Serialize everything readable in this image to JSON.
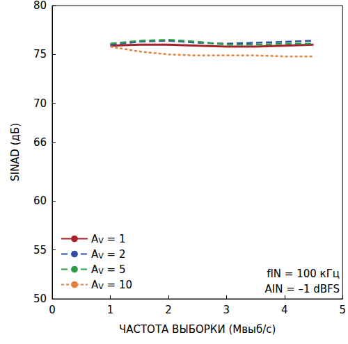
{
  "chart_data": {
    "type": "line",
    "x_label": "ЧАСТОТА ВЫБОРКИ (Мвыб/с)",
    "y_label": "SINAD (дБ)",
    "x": [
      1,
      1.5,
      2,
      2.5,
      3,
      3.5,
      4,
      4.5
    ],
    "series": [
      {
        "name": "AV = 1",
        "color": "#a3232b",
        "line_style": "solid",
        "values": [
          75.9,
          76.0,
          76.0,
          75.9,
          75.8,
          75.8,
          75.9,
          76.0
        ]
      },
      {
        "name": "AV = 2",
        "color": "#2f4ea1",
        "line_style": "dashed",
        "values": [
          76.0,
          76.3,
          76.4,
          76.2,
          76.1,
          76.2,
          76.3,
          76.4
        ]
      },
      {
        "name": "AV = 5",
        "color": "#2e9a48",
        "line_style": "dashed",
        "values": [
          76.1,
          76.4,
          76.5,
          76.3,
          76.0,
          76.0,
          76.1,
          76.1
        ]
      },
      {
        "name": "AV = 10",
        "color": "#e2803e",
        "line_style": "dotted",
        "values": [
          75.8,
          75.3,
          75.0,
          74.9,
          74.9,
          74.9,
          74.8,
          74.8
        ]
      }
    ],
    "xlim": [
      0,
      5
    ],
    "xticks": [
      0,
      1,
      2,
      3,
      4,
      5
    ],
    "ylim": [
      50,
      80
    ],
    "yticks": [
      50,
      55,
      60,
      66,
      70,
      75,
      80
    ],
    "grid": false,
    "legend": "lower left",
    "annotations": [
      "fIN = 100 кГц",
      "AIN = –1 dBFS"
    ]
  }
}
